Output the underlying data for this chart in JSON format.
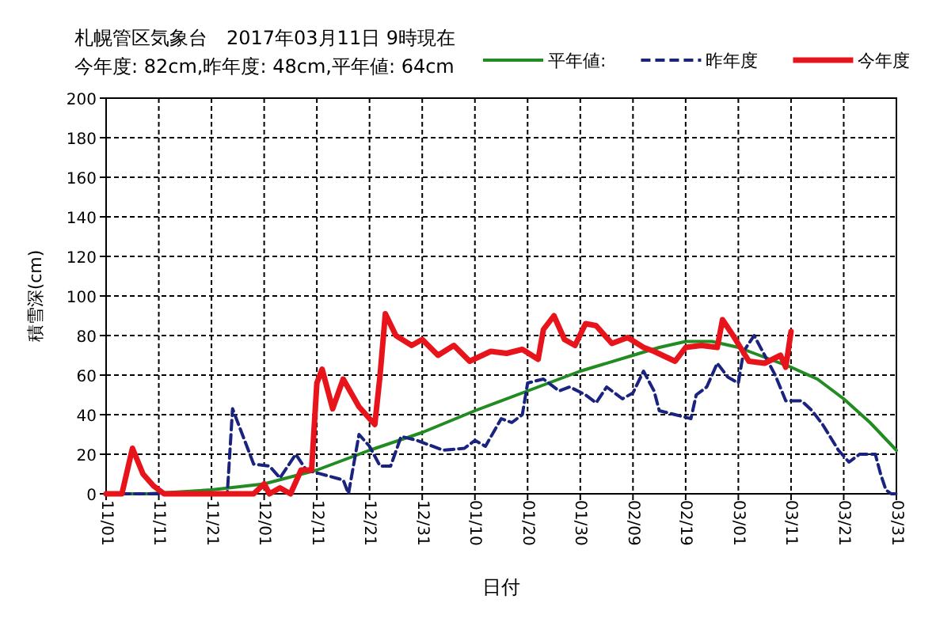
{
  "chart_data": {
    "type": "line",
    "title": "札幌管区気象台　2017年03月11日 9時現在",
    "subtitle": "今年度: 82cm,昨年度: 48cm,平年値: 64cm",
    "xlabel": "日付",
    "ylabel": "積雪深(cm)",
    "xlim": [
      "2016-11-01",
      "2017-03-31"
    ],
    "xticks": [
      {
        "value": "2016-11-01",
        "label": "11/01"
      },
      {
        "value": "2016-11-11",
        "label": "11/11"
      },
      {
        "value": "2016-11-21",
        "label": "11/21"
      },
      {
        "value": "2016-12-01",
        "label": "12/01"
      },
      {
        "value": "2016-12-11",
        "label": "12/11"
      },
      {
        "value": "2016-12-21",
        "label": "12/21"
      },
      {
        "value": "2016-12-31",
        "label": "12/31"
      },
      {
        "value": "2017-01-10",
        "label": "01/10"
      },
      {
        "value": "2017-01-20",
        "label": "01/20"
      },
      {
        "value": "2017-01-30",
        "label": "01/30"
      },
      {
        "value": "2017-02-09",
        "label": "02/09"
      },
      {
        "value": "2017-02-19",
        "label": "02/19"
      },
      {
        "value": "2017-03-01",
        "label": "03/01"
      },
      {
        "value": "2017-03-11",
        "label": "03/11"
      },
      {
        "value": "2017-03-21",
        "label": "03/21"
      },
      {
        "value": "2017-03-31",
        "label": "03/31"
      }
    ],
    "ylim": [
      0,
      200
    ],
    "yticks": [
      0,
      20,
      40,
      60,
      80,
      100,
      120,
      140,
      160,
      180,
      200
    ],
    "grid": true,
    "legend": "top right",
    "marker": "none",
    "series": [
      {
        "name": "平年値:",
        "color": "#228b22",
        "line_style": "solid",
        "x": [
          "2016-11-01",
          "2016-11-09",
          "2016-11-21",
          "2016-12-01",
          "2016-12-11",
          "2016-12-21",
          "2016-12-31",
          "2017-01-10",
          "2017-01-20",
          "2017-01-30",
          "2017-02-09",
          "2017-02-14",
          "2017-02-19",
          "2017-02-24",
          "2017-03-01",
          "2017-03-06",
          "2017-03-11",
          "2017-03-16",
          "2017-03-21",
          "2017-03-26",
          "2017-03-31"
        ],
        "values": [
          0,
          0,
          2,
          5,
          12,
          22,
          31,
          42,
          52,
          62,
          70,
          74,
          77,
          77,
          74,
          69,
          64,
          58,
          48,
          36,
          22
        ]
      },
      {
        "name": "昨年度",
        "color": "#1a237e",
        "line_style": "dashed",
        "x": [
          "2016-11-01",
          "2016-11-24",
          "2016-11-25",
          "2016-11-29",
          "2016-12-02",
          "2016-12-04",
          "2016-12-07",
          "2016-12-09",
          "2016-12-16",
          "2016-12-17",
          "2016-12-19",
          "2016-12-21",
          "2016-12-23",
          "2016-12-25",
          "2016-12-27",
          "2016-12-30",
          "2017-01-04",
          "2017-01-08",
          "2017-01-10",
          "2017-01-12",
          "2017-01-15",
          "2017-01-17",
          "2017-01-19",
          "2017-01-20",
          "2017-01-23",
          "2017-01-26",
          "2017-01-28",
          "2017-01-31",
          "2017-02-02",
          "2017-02-04",
          "2017-02-07",
          "2017-02-09",
          "2017-02-11",
          "2017-02-13",
          "2017-02-14",
          "2017-02-17",
          "2017-02-20",
          "2017-02-21",
          "2017-02-23",
          "2017-02-25",
          "2017-02-27",
          "2017-03-01",
          "2017-03-02",
          "2017-03-04",
          "2017-03-06",
          "2017-03-08",
          "2017-03-10",
          "2017-03-13",
          "2017-03-15",
          "2017-03-17",
          "2017-03-20",
          "2017-03-22",
          "2017-03-24",
          "2017-03-27",
          "2017-03-28",
          "2017-03-29",
          "2017-03-30",
          "2017-03-31"
        ],
        "values": [
          0,
          0,
          43,
          15,
          14,
          8,
          20,
          12,
          7,
          0,
          30,
          24,
          14,
          14,
          29,
          27,
          22,
          23,
          27,
          24,
          38,
          36,
          40,
          56,
          58,
          52,
          54,
          50,
          46,
          54,
          48,
          51,
          62,
          52,
          42,
          40,
          38,
          50,
          54,
          66,
          59,
          56,
          72,
          80,
          70,
          60,
          47,
          47,
          42,
          35,
          22,
          16,
          20,
          20,
          10,
          2,
          0,
          0
        ]
      },
      {
        "name": "今年度",
        "color": "#e8141c",
        "line_style": "solid",
        "x": [
          "2016-11-01",
          "2016-11-04",
          "2016-11-06",
          "2016-11-08",
          "2016-11-10",
          "2016-11-12",
          "2016-11-29",
          "2016-12-01",
          "2016-12-02",
          "2016-12-04",
          "2016-12-06",
          "2016-12-08",
          "2016-12-10",
          "2016-12-11",
          "2016-12-12",
          "2016-12-14",
          "2016-12-16",
          "2016-12-19",
          "2016-12-22",
          "2016-12-23",
          "2016-12-24",
          "2016-12-26",
          "2016-12-29",
          "2016-12-31",
          "2017-01-03",
          "2017-01-06",
          "2017-01-09",
          "2017-01-13",
          "2017-01-16",
          "2017-01-19",
          "2017-01-22",
          "2017-01-23",
          "2017-01-25",
          "2017-01-27",
          "2017-01-29",
          "2017-01-31",
          "2017-02-02",
          "2017-02-05",
          "2017-02-08",
          "2017-02-11",
          "2017-02-13",
          "2017-02-17",
          "2017-02-19",
          "2017-02-22",
          "2017-02-25",
          "2017-02-26",
          "2017-02-28",
          "2017-03-03",
          "2017-03-06",
          "2017-03-09",
          "2017-03-10",
          "2017-03-11"
        ],
        "values": [
          0,
          0,
          23,
          10,
          4,
          0,
          0,
          5,
          0,
          3,
          0,
          12,
          12,
          56,
          63,
          43,
          58,
          44,
          35,
          60,
          91,
          80,
          75,
          78,
          70,
          75,
          67,
          72,
          71,
          73,
          68,
          83,
          90,
          78,
          75,
          86,
          85,
          76,
          79,
          74,
          72,
          67,
          74,
          75,
          74,
          88,
          80,
          67,
          66,
          70,
          64,
          82
        ]
      }
    ]
  }
}
